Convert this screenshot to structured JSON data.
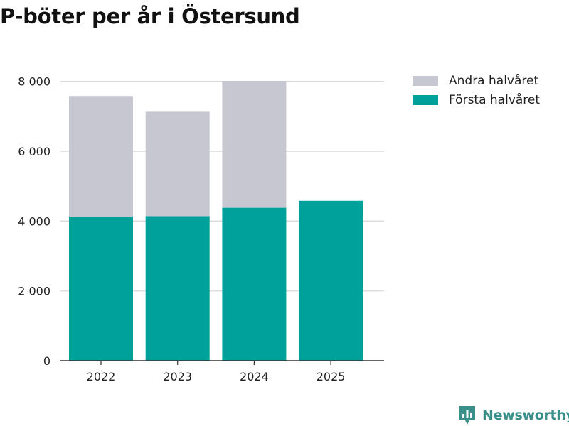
{
  "chart_data": {
    "type": "bar",
    "stacked": true,
    "title": "P-böter per år i Östersund",
    "categories": [
      "2022",
      "2023",
      "2024",
      "2025"
    ],
    "series": [
      {
        "name": "Första halvåret",
        "color": "#00a19a",
        "values": [
          4120,
          4140,
          4380,
          4580
        ]
      },
      {
        "name": "Andra halvåret",
        "color": "#c7c7d1",
        "values": [
          3460,
          2990,
          3630,
          null
        ]
      }
    ],
    "y_ticks": [
      0,
      2000,
      4000,
      6000,
      8000
    ],
    "y_tick_labels": [
      "0",
      "2 000",
      "4 000",
      "6 000",
      "8 000"
    ],
    "ylim": [
      0,
      8500
    ],
    "xlabel": "",
    "ylabel": "",
    "grid": true,
    "legend_position": "top-right"
  },
  "legend": {
    "items": [
      {
        "label": "Andra halvåret",
        "color": "#c7c7d1"
      },
      {
        "label": "Första halvåret",
        "color": "#00a19a"
      }
    ]
  },
  "brand": {
    "name": "Newsworthy",
    "logo_icon": "newsworthy-bar-chart-icon",
    "color": "#3a8f8b"
  }
}
